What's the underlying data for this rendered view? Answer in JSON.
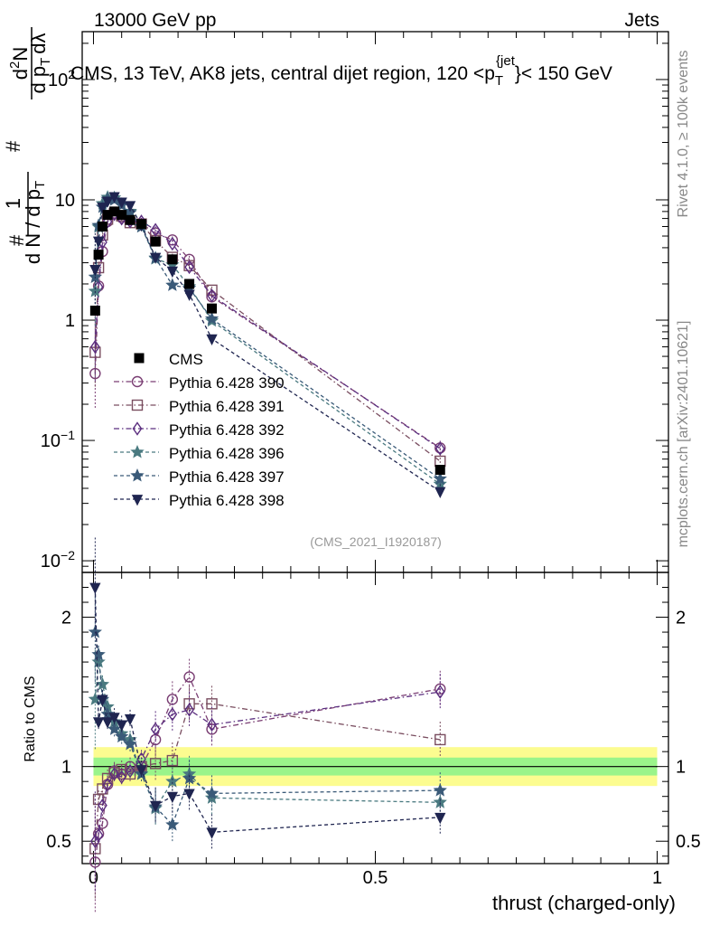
{
  "header": {
    "left": "13000 GeV pp",
    "right": "Jets"
  },
  "side_labels": {
    "rivet": "Rivet 4.1.0, ≥ 100k events",
    "mcplots": "mcplots.cern.ch [arXiv:2401.10621]"
  },
  "chart_data": {
    "type": "line",
    "title": "CMS, 13 TeV, AK8 jets, central dijet region, 120 <p_T^{jet}< 150 GeV",
    "title_parts": {
      "main": "CMS, 13 TeV, AK8 jets, central dijet region, 120 <p",
      "sub": "T",
      "sup": "{jet",
      "end": "}< 150 GeV"
    },
    "analysis_id": "(CMS_2021_I1920187)",
    "xlabel": "thrust (charged-only)",
    "ylabel": {
      "top_hash": "#",
      "one": "1",
      "denom": "d N / d p",
      "denom_sub": "T",
      "hash2": "#",
      "num2": "d",
      "num2_sup": "2",
      "num2_end": "N",
      "den2": "d p",
      "den2_sub": "T",
      "den2_end": "dλ"
    },
    "ratio_ylabel": "Ratio to CMS",
    "xlim": [
      -0.02,
      1.02
    ],
    "ylim": [
      0.008,
      250
    ],
    "yscale": "log",
    "ratio_ylim": [
      0.35,
      2.3
    ],
    "x_ticks": [
      {
        "value": 0,
        "label": "0"
      },
      {
        "value": 0.5,
        "label": "0.5"
      },
      {
        "value": 1,
        "label": "1"
      }
    ],
    "y_ticks": [
      {
        "value": 0.01,
        "base": "10",
        "exp": "−2"
      },
      {
        "value": 0.1,
        "base": "10",
        "exp": "−1"
      },
      {
        "value": 1,
        "base": "1",
        "exp": ""
      },
      {
        "value": 10,
        "base": "10",
        "exp": ""
      },
      {
        "value": 100,
        "base": "10",
        "exp": "2"
      }
    ],
    "ratio_y_ticks": [
      {
        "value": 0.5,
        "label": "0.5"
      },
      {
        "value": 1,
        "label": "1"
      },
      {
        "value": 2,
        "label": "2"
      }
    ],
    "x": [
      0.003,
      0.009,
      0.016,
      0.025,
      0.037,
      0.05,
      0.065,
      0.085,
      0.11,
      0.14,
      0.17,
      0.21,
      0.615
    ],
    "cms": [
      1.2,
      3.5,
      6.0,
      7.5,
      8.0,
      7.5,
      6.8,
      6.3,
      4.5,
      3.2,
      2.0,
      1.25,
      0.057
    ],
    "cms_band_stat": 0.05,
    "cms_band_total": 0.1,
    "series": [
      {
        "name": "Pythia 6.428 390",
        "color": "#7a3e73",
        "marker": "circle",
        "dash": "6,3,1.5,3",
        "ratio": [
          0.3,
          0.55,
          0.62,
          0.88,
          0.97,
          0.95,
          1.0,
          1.0,
          1.18,
          1.45,
          1.6,
          1.25,
          1.52
        ]
      },
      {
        "name": "Pythia 6.428 391",
        "color": "#7a4e60",
        "marker": "square",
        "dash": "6,3,1.5,3",
        "ratio": [
          0.45,
          0.78,
          0.85,
          0.92,
          0.96,
          0.98,
          0.95,
          1.0,
          1.02,
          1.04,
          1.42,
          1.42,
          1.18
        ]
      },
      {
        "name": "Pythia 6.428 392",
        "color": "#5b2e7f",
        "marker": "diamond",
        "dash": "6,3,1.5,3",
        "ratio": [
          0.5,
          0.54,
          0.74,
          0.88,
          0.95,
          0.93,
          0.97,
          1.05,
          1.25,
          1.35,
          1.38,
          1.28,
          1.5
        ]
      },
      {
        "name": "Pythia 6.428 396",
        "color": "#4a7a80",
        "marker": "star",
        "dash": "4,3",
        "ratio": [
          1.45,
          1.7,
          1.55,
          1.4,
          1.3,
          1.22,
          1.18,
          0.95,
          0.72,
          0.9,
          0.95,
          0.79,
          0.76
        ]
      },
      {
        "name": "Pythia 6.428 397",
        "color": "#3a5a78",
        "marker": "star",
        "dash": "4,3",
        "ratio": [
          1.9,
          1.75,
          1.45,
          1.35,
          1.25,
          1.2,
          1.15,
          0.95,
          0.73,
          0.61,
          0.92,
          0.82,
          0.84
        ]
      },
      {
        "name": "Pythia 6.428 398",
        "color": "#1f2550",
        "marker": "triangle-down",
        "dash": "4,3",
        "ratio": [
          2.2,
          1.3,
          1.45,
          1.3,
          1.33,
          1.28,
          1.32,
          0.98,
          0.74,
          0.8,
          0.82,
          0.56,
          0.66
        ]
      }
    ],
    "legend_data_label": "CMS",
    "legend_position": "center-left"
  }
}
